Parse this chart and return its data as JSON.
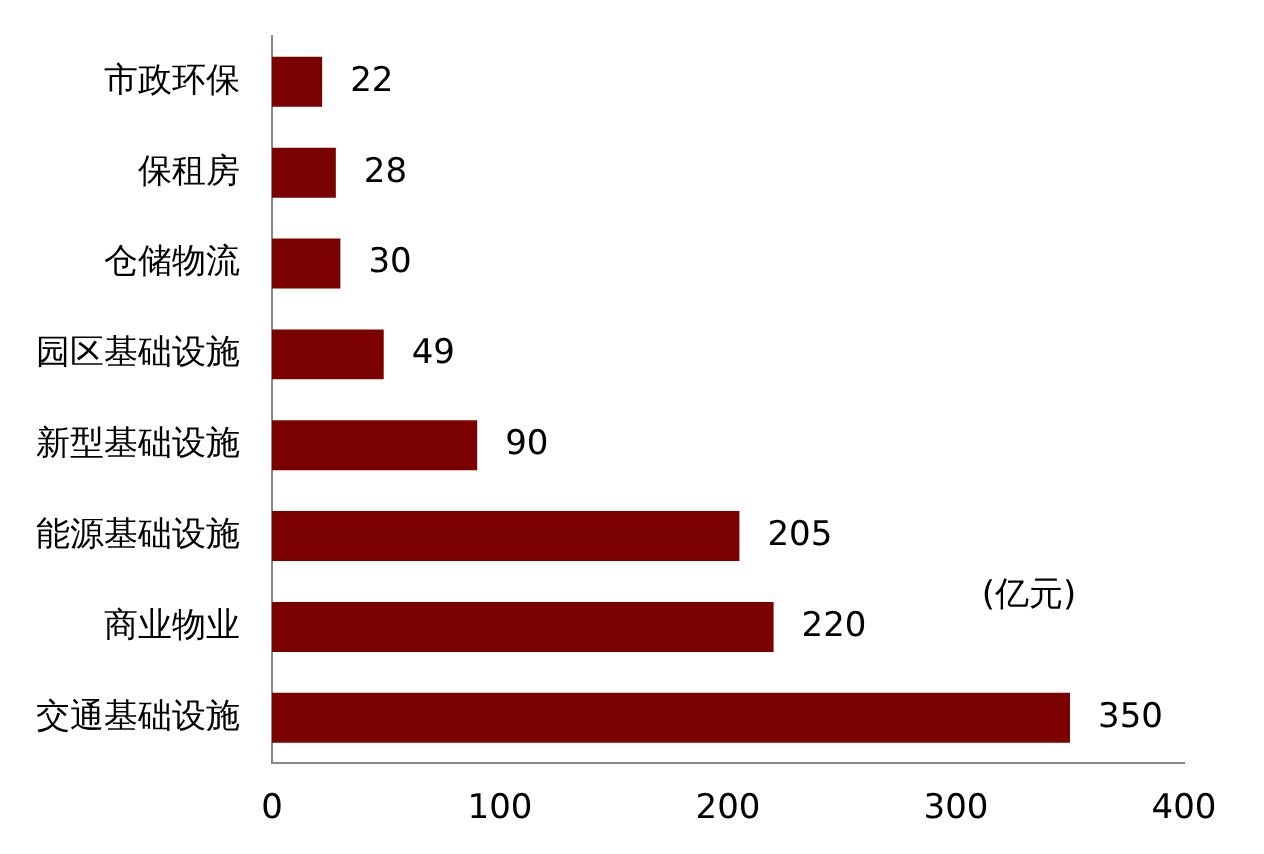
{
  "chart_data": {
    "type": "bar",
    "orientation": "horizontal",
    "categories": [
      "市政环保",
      "保租房",
      "仓储物流",
      "园区基础设施",
      "新型基础设施",
      "能源基础设施",
      "商业物业",
      "交通基础设施"
    ],
    "values": [
      22,
      28,
      30,
      49,
      90,
      205,
      220,
      350
    ],
    "color": "#7b0000",
    "xlim": [
      0,
      400
    ],
    "xticks": [
      0,
      100,
      200,
      300,
      400
    ],
    "grid": false,
    "legend": false,
    "data_labels": true,
    "annotations": [
      "(亿元)"
    ]
  }
}
